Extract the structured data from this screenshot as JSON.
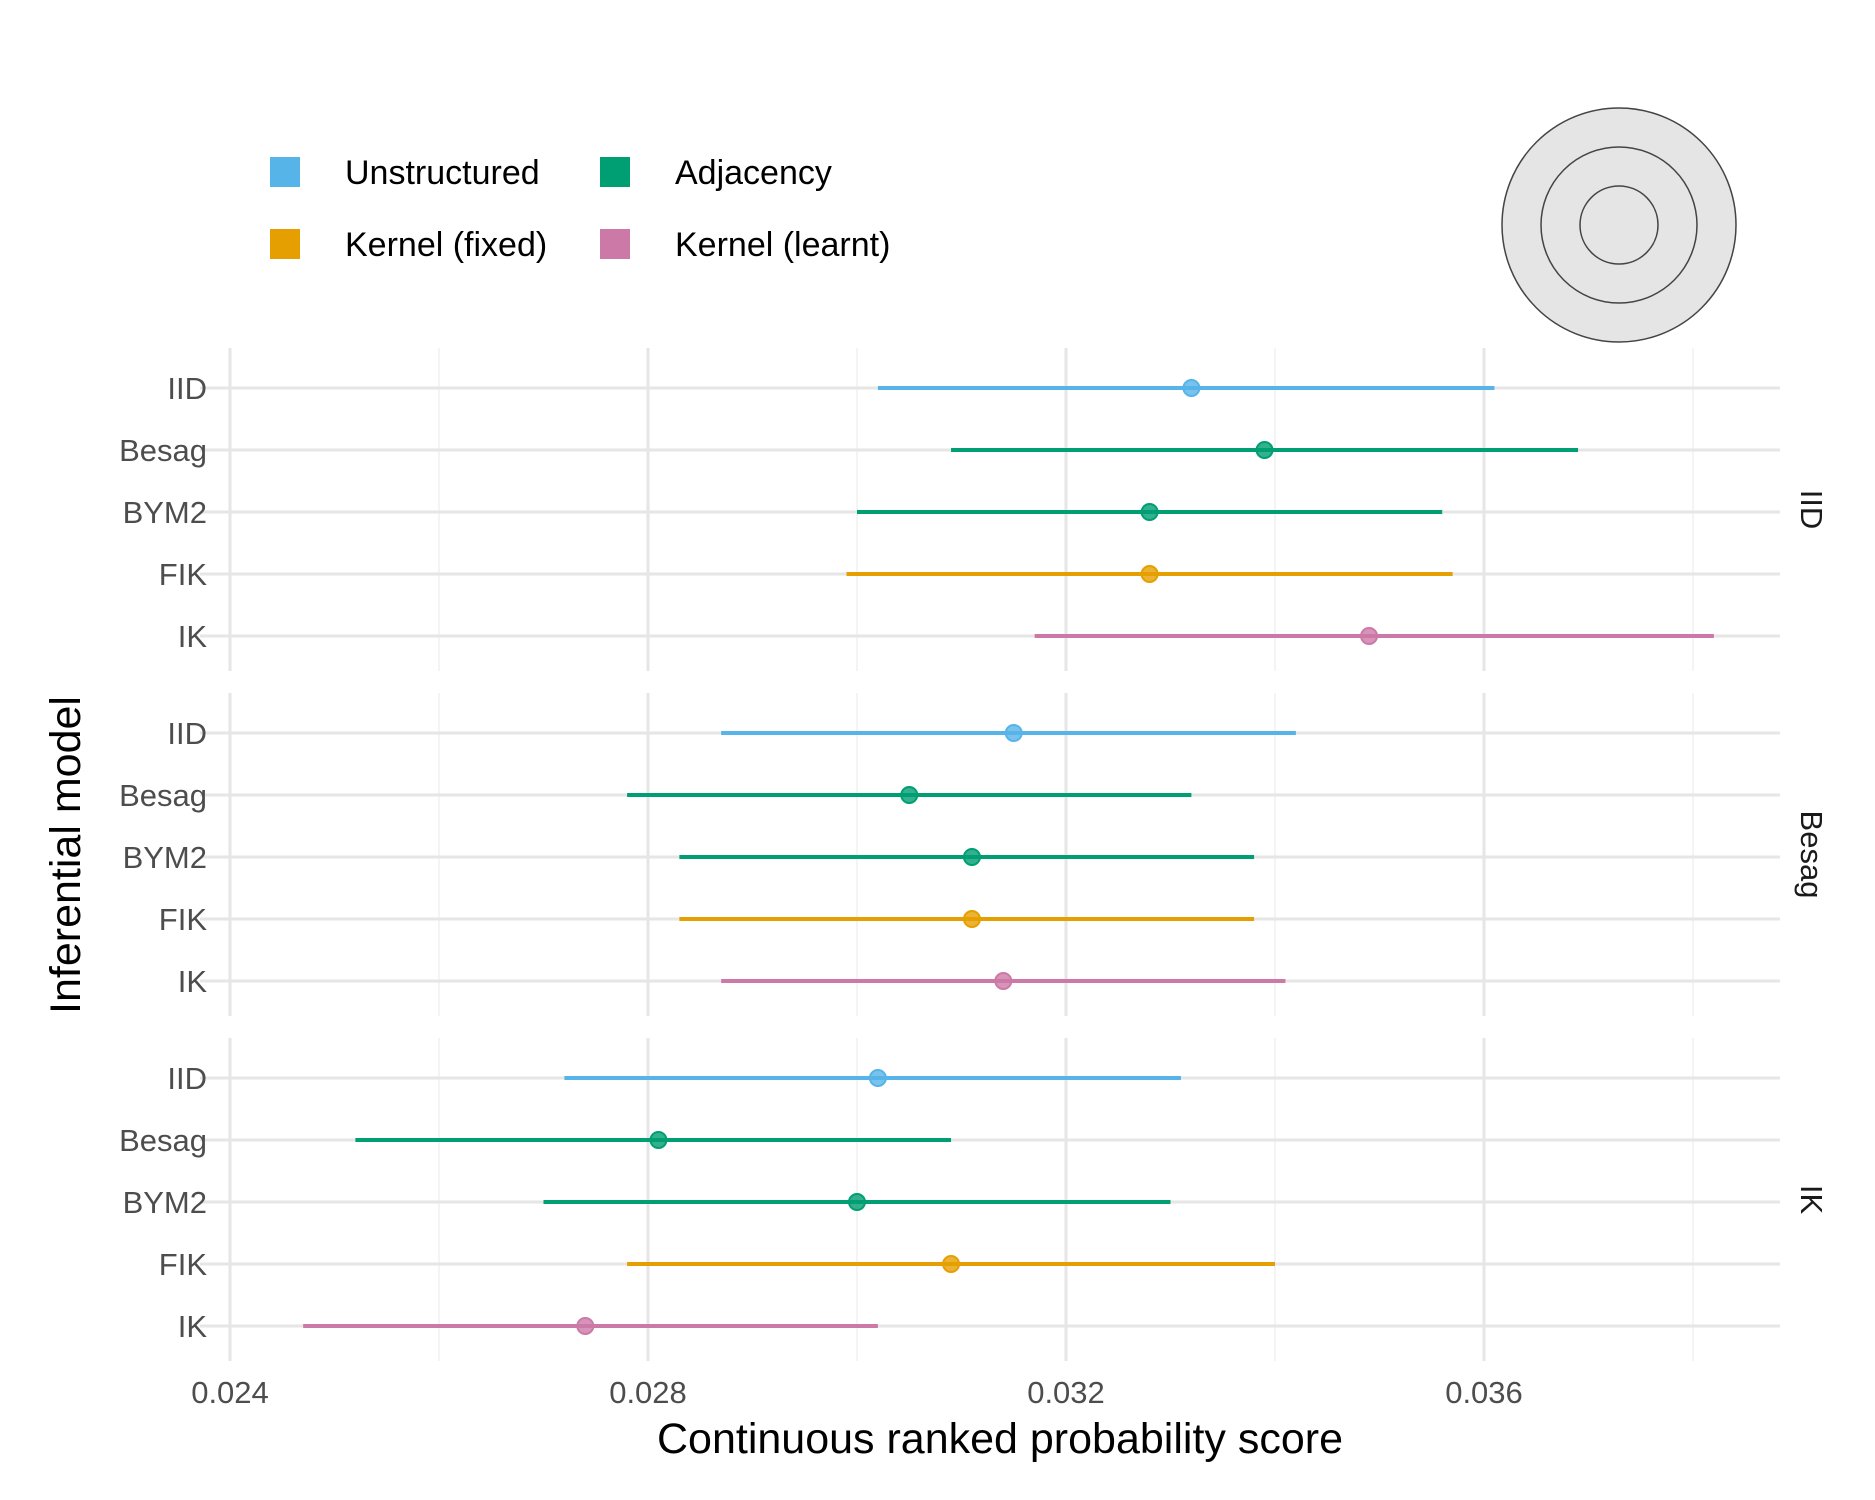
{
  "chart_data": {
    "type": "dot-interval",
    "xlabel": "Continuous ranked probability score",
    "ylabel": "Inferential model",
    "xlim": [
      0.024,
      0.0388
    ],
    "x_ticks": [
      "0.024",
      "0.028",
      "0.032",
      "0.036"
    ],
    "grid": true,
    "legend": {
      "placement": "top-left",
      "entries": [
        {
          "label": "Unstructured",
          "color": "#56B4E9"
        },
        {
          "label": "Kernel (fixed)",
          "color": "#E69F00"
        },
        {
          "label": "Adjacency",
          "color": "#009E73"
        },
        {
          "label": "Kernel (learnt)",
          "color": "#CC79A7"
        }
      ]
    },
    "models": [
      "IID",
      "Besag",
      "BYM2",
      "FIK",
      "IK"
    ],
    "model_groups": {
      "IID": "Unstructured",
      "Besag": "Adjacency",
      "BYM2": "Adjacency",
      "FIK": "Kernel (fixed)",
      "IK": "Kernel (learnt)"
    },
    "panels": [
      {
        "facet": "IID",
        "rows": [
          {
            "model": "IID",
            "estimate": 0.0332,
            "lower": 0.0302,
            "upper": 0.0361
          },
          {
            "model": "Besag",
            "estimate": 0.0339,
            "lower": 0.0309,
            "upper": 0.0369
          },
          {
            "model": "BYM2",
            "estimate": 0.0328,
            "lower": 0.03,
            "upper": 0.0356
          },
          {
            "model": "FIK",
            "estimate": 0.0328,
            "lower": 0.0299,
            "upper": 0.0357
          },
          {
            "model": "IK",
            "estimate": 0.0349,
            "lower": 0.0317,
            "upper": 0.0382
          }
        ]
      },
      {
        "facet": "Besag",
        "rows": [
          {
            "model": "IID",
            "estimate": 0.0315,
            "lower": 0.0287,
            "upper": 0.0342
          },
          {
            "model": "Besag",
            "estimate": 0.0305,
            "lower": 0.0278,
            "upper": 0.0332
          },
          {
            "model": "BYM2",
            "estimate": 0.0311,
            "lower": 0.0283,
            "upper": 0.0338
          },
          {
            "model": "FIK",
            "estimate": 0.0311,
            "lower": 0.0283,
            "upper": 0.0338
          },
          {
            "model": "IK",
            "estimate": 0.0314,
            "lower": 0.0287,
            "upper": 0.0341
          }
        ]
      },
      {
        "facet": "IK",
        "rows": [
          {
            "model": "IID",
            "estimate": 0.0302,
            "lower": 0.0272,
            "upper": 0.0331
          },
          {
            "model": "Besag",
            "estimate": 0.0281,
            "lower": 0.0252,
            "upper": 0.0309
          },
          {
            "model": "BYM2",
            "estimate": 0.03,
            "lower": 0.027,
            "upper": 0.033
          },
          {
            "model": "FIK",
            "estimate": 0.0309,
            "lower": 0.0278,
            "upper": 0.034
          },
          {
            "model": "IK",
            "estimate": 0.0274,
            "lower": 0.0247,
            "upper": 0.0302
          }
        ]
      }
    ]
  }
}
